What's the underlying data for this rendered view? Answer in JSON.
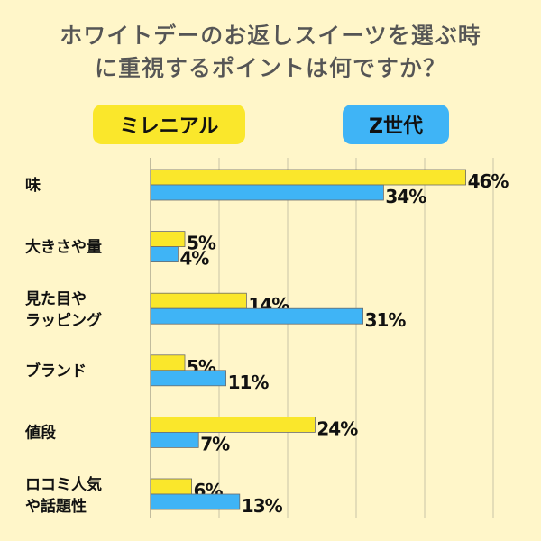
{
  "title_line1": "ホワイトデーのお返しスイーツを選ぶ時",
  "title_line2": "に重視するポイントは何ですか？",
  "chart_data": {
    "type": "bar",
    "orientation": "horizontal",
    "title": "ホワイトデーのお返しスイーツを選ぶ時に重視するポイントは何ですか？",
    "categories": [
      [
        "味"
      ],
      [
        "大きさや量"
      ],
      [
        "見た目や",
        "ラッピング"
      ],
      [
        "ブランド"
      ],
      [
        "値段"
      ],
      [
        "ロコミ人気",
        "や話題性"
      ]
    ],
    "series": [
      {
        "name": "ミレニアル",
        "color": "#fae72b",
        "values": [
          46,
          5,
          14,
          5,
          24,
          6
        ]
      },
      {
        "name": "Z世代",
        "color": "#3fb4f6",
        "values": [
          34,
          4,
          31,
          11,
          7,
          13
        ]
      }
    ],
    "value_suffix": "%",
    "xlim": [
      0,
      50
    ],
    "grid": true,
    "legend_position": "top"
  }
}
